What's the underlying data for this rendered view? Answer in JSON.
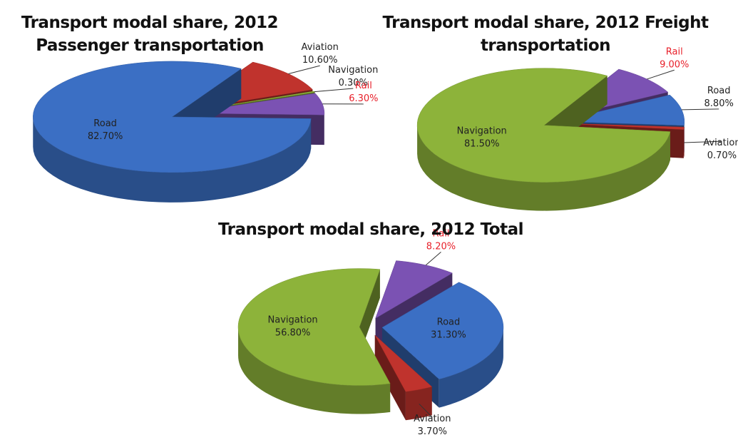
{
  "chart_data": [
    {
      "type": "pie",
      "title": "Transport modal share, 2012 Passenger transportation",
      "categories": [
        "Aviation",
        "Navigation",
        "Rail",
        "Road"
      ],
      "values": [
        10.6,
        0.3,
        6.3,
        82.7
      ],
      "value_labels": [
        "10.60%",
        "0.30%",
        "6.30%",
        "82.70%"
      ],
      "colors": [
        "#c0332d",
        "#8db33a",
        "#7b52b3",
        "#3b6fc4"
      ],
      "label_colors": [
        "#222222",
        "#222222",
        "#e8202a",
        "#222222"
      ]
    },
    {
      "type": "pie",
      "title": "Transport modal share, 2012 Freight transportation",
      "categories": [
        "Rail",
        "Road",
        "Aviation",
        "Navigation"
      ],
      "values": [
        9.0,
        8.8,
        0.7,
        81.5
      ],
      "value_labels": [
        "9.00%",
        "8.80%",
        "0.70%",
        "81.50%"
      ],
      "colors": [
        "#7b52b3",
        "#3b6fc4",
        "#c0332d",
        "#8db33a"
      ],
      "label_colors": [
        "#e8202a",
        "#222222",
        "#222222",
        "#222222"
      ]
    },
    {
      "type": "pie",
      "title": "Transport modal share, 2012 Total",
      "categories": [
        "Rail",
        "Road",
        "Aviation",
        "Navigation"
      ],
      "values": [
        8.2,
        31.3,
        3.7,
        56.8
      ],
      "value_labels": [
        "8.20%",
        "31.30%",
        "3.70%",
        "56.80%"
      ],
      "colors": [
        "#7b52b3",
        "#3b6fc4",
        "#c0332d",
        "#8db33a"
      ],
      "label_colors": [
        "#e8202a",
        "#222222",
        "#222222",
        "#222222"
      ]
    }
  ]
}
